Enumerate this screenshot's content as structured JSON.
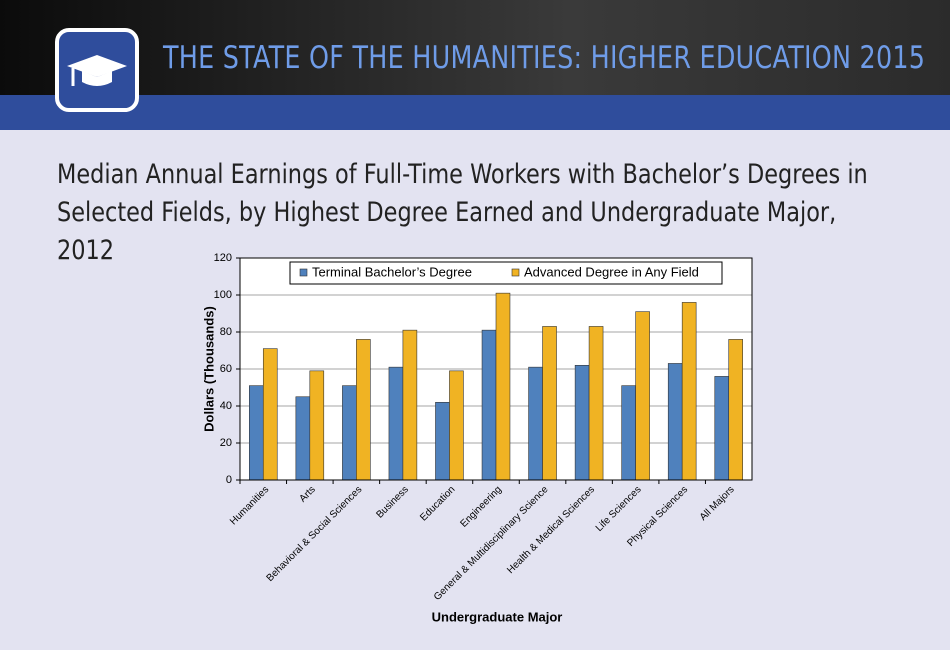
{
  "header": {
    "title": "THE STATE OF THE HUMANITIES: HIGHER EDUCATION 2015"
  },
  "chart_data": {
    "type": "bar",
    "title": "Median Annual Earnings of Full-Time Workers with Bachelor’s Degrees in Selected Fields, by Highest Degree Earned and Undergraduate Major, 2012",
    "x_label": "Undergraduate Major",
    "y_label": "Dollars (Thousands)",
    "categories": [
      "Humanities",
      "Arts",
      "Behavioral & Social Sciences",
      "Business",
      "Education",
      "Engineering",
      "General & Multidisciplinary Science",
      "Health & Medical Sciences",
      "Life Sciences",
      "Physical Sciences",
      "All Majors"
    ],
    "series": [
      {
        "name": "Terminal Bachelor’s Degree",
        "color": "#4f81bd",
        "values": [
          51,
          45,
          51,
          61,
          42,
          81,
          61,
          62,
          51,
          63,
          56
        ]
      },
      {
        "name": "Advanced Degree in Any Field",
        "color": "#f0b323",
        "values": [
          71,
          59,
          76,
          81,
          59,
          101,
          83,
          83,
          91,
          96,
          76
        ]
      }
    ],
    "ylim": [
      0,
      120
    ],
    "yticks": [
      0,
      20,
      40,
      60,
      80,
      100,
      120
    ],
    "grid": true,
    "legend": "top"
  }
}
